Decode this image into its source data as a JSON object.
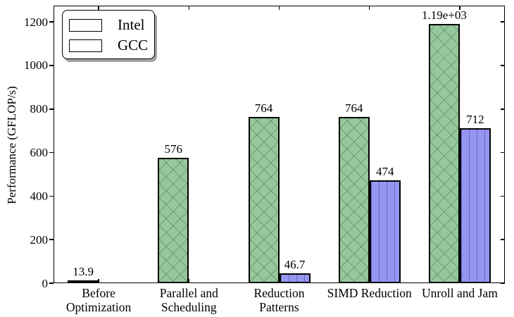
{
  "chart_data": {
    "type": "bar",
    "title": "",
    "xlabel": "",
    "ylabel": "Performance (GFLOP/s)",
    "ylim": [
      0,
      1275
    ],
    "yticks": [
      0,
      200,
      400,
      600,
      800,
      1000,
      1200
    ],
    "grid": false,
    "categories": [
      "Before Optimization",
      "Parallel and Scheduling",
      "Reduction Patterns",
      "SIMD Reduction",
      "Unroll and Jam"
    ],
    "categories_display": [
      [
        "Before",
        "Optimization"
      ],
      [
        "Parallel and",
        "Scheduling"
      ],
      [
        "Reduction",
        "Patterns"
      ],
      [
        "SIMD Reduction"
      ],
      [
        "Unroll and Jam"
      ]
    ],
    "series": [
      {
        "name": "Intel",
        "color": "#96c89b",
        "hatch": "x",
        "values": [
          13.9,
          576,
          764,
          764,
          1190
        ],
        "bar_labels": [
          "13.9",
          "576",
          "764",
          "764",
          "1.19e+03"
        ]
      },
      {
        "name": "GCC",
        "color": "#9696f0",
        "hatch": "|",
        "values": [
          null,
          null,
          46.7,
          474,
          712
        ],
        "bar_labels": [
          null,
          null,
          "46.7",
          "474",
          "712"
        ]
      }
    ],
    "legend": {
      "position": "upper left",
      "entries": [
        "Intel",
        "GCC"
      ]
    },
    "colors": {
      "bar_edge": "#000000",
      "axis": "#000000",
      "legend_shadow": "#a3a3a3",
      "background": "#ffffff"
    }
  }
}
